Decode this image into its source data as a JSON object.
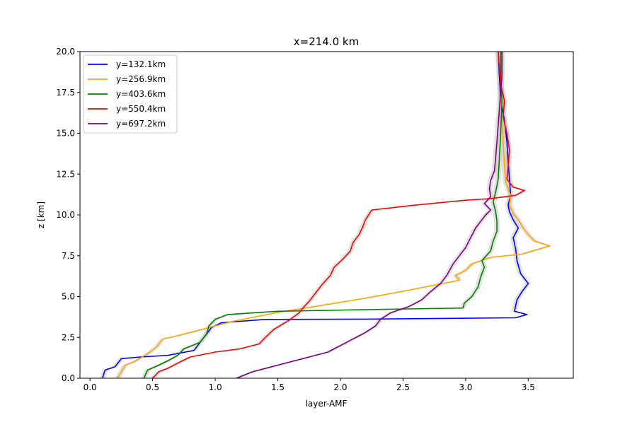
{
  "chart_data": {
    "type": "line",
    "title": "x=214.0 km",
    "xlabel": "layer-AMF",
    "ylabel": "z [km]",
    "xlim": [
      -0.08,
      3.86
    ],
    "ylim": [
      0,
      20
    ],
    "xticks": [
      "0.0",
      "0.5",
      "1.0",
      "1.5",
      "2.0",
      "2.5",
      "3.0",
      "3.5"
    ],
    "yticks": [
      "0.0",
      "2.5",
      "5.0",
      "7.5",
      "10.0",
      "12.5",
      "15.0",
      "17.5",
      "20.0"
    ],
    "grid": false,
    "legend_position": "upper-left",
    "uncertainty_band_color": "#c8c8c8",
    "series": [
      {
        "name": "y=132.1km",
        "color": "#0000ff",
        "points": [
          [
            0.1,
            0
          ],
          [
            0.12,
            0.5
          ],
          [
            0.2,
            0.7
          ],
          [
            0.25,
            1.2
          ],
          [
            0.4,
            1.3
          ],
          [
            0.62,
            1.4
          ],
          [
            0.83,
            1.7
          ],
          [
            0.88,
            2.2
          ],
          [
            0.92,
            2.6
          ],
          [
            0.97,
            3.1
          ],
          [
            1.05,
            3.4
          ],
          [
            1.4,
            3.6
          ],
          [
            2.2,
            3.62
          ],
          [
            3.4,
            3.7
          ],
          [
            3.49,
            3.9
          ],
          [
            3.39,
            4.1
          ],
          [
            3.41,
            4.8
          ],
          [
            3.45,
            5.3
          ],
          [
            3.5,
            5.8
          ],
          [
            3.44,
            6.4
          ],
          [
            3.41,
            7.2
          ],
          [
            3.4,
            7.9
          ],
          [
            3.38,
            8.6
          ],
          [
            3.42,
            9.2
          ],
          [
            3.38,
            9.7
          ],
          [
            3.35,
            10.2
          ],
          [
            3.34,
            10.6
          ],
          [
            3.36,
            11.2
          ],
          [
            3.35,
            12.2
          ],
          [
            3.34,
            13.2
          ],
          [
            3.33,
            14.5
          ],
          [
            3.31,
            15.8
          ],
          [
            3.28,
            17
          ],
          [
            3.27,
            18.5
          ],
          [
            3.26,
            20
          ]
        ]
      },
      {
        "name": "y=256.9km",
        "color": "#ffa500",
        "points": [
          [
            0.22,
            0
          ],
          [
            0.28,
            0.8
          ],
          [
            0.35,
            1.0
          ],
          [
            0.46,
            1.5
          ],
          [
            0.53,
            1.9
          ],
          [
            0.58,
            2.4
          ],
          [
            0.7,
            2.6
          ],
          [
            0.85,
            2.9
          ],
          [
            1.15,
            3.5
          ],
          [
            1.55,
            4.1
          ],
          [
            1.8,
            4.4
          ],
          [
            2.2,
            4.9
          ],
          [
            2.55,
            5.4
          ],
          [
            2.75,
            5.7
          ],
          [
            2.95,
            6.0
          ],
          [
            2.92,
            6.3
          ],
          [
            3.0,
            6.6
          ],
          [
            3.05,
            7.0
          ],
          [
            3.2,
            7.4
          ],
          [
            3.45,
            7.6
          ],
          [
            3.67,
            8.1
          ],
          [
            3.55,
            8.4
          ],
          [
            3.5,
            8.8
          ],
          [
            3.46,
            9.2
          ],
          [
            3.42,
            9.7
          ],
          [
            3.38,
            10.1
          ],
          [
            3.35,
            10.6
          ],
          [
            3.36,
            11.2
          ],
          [
            3.32,
            12.0
          ],
          [
            3.31,
            13.0
          ],
          [
            3.3,
            14.5
          ],
          [
            3.29,
            16.0
          ],
          [
            3.28,
            17.5
          ],
          [
            3.28,
            20
          ]
        ]
      },
      {
        "name": "y=403.6km",
        "color": "#008000",
        "points": [
          [
            0.43,
            0
          ],
          [
            0.46,
            0.5
          ],
          [
            0.55,
            0.8
          ],
          [
            0.63,
            1.1
          ],
          [
            0.7,
            1.4
          ],
          [
            0.75,
            1.8
          ],
          [
            0.88,
            2.2
          ],
          [
            0.93,
            2.7
          ],
          [
            0.95,
            3.2
          ],
          [
            1.0,
            3.6
          ],
          [
            1.1,
            3.9
          ],
          [
            1.5,
            4.1
          ],
          [
            2.2,
            4.2
          ],
          [
            2.98,
            4.3
          ],
          [
            2.99,
            4.6
          ],
          [
            3.05,
            5.0
          ],
          [
            3.1,
            5.6
          ],
          [
            3.12,
            6.2
          ],
          [
            3.15,
            6.8
          ],
          [
            3.13,
            7.2
          ],
          [
            3.2,
            7.8
          ],
          [
            3.22,
            8.4
          ],
          [
            3.25,
            9.0
          ],
          [
            3.25,
            9.6
          ],
          [
            3.24,
            10.2
          ],
          [
            3.22,
            10.8
          ],
          [
            3.24,
            11.4
          ],
          [
            3.26,
            12.2
          ],
          [
            3.27,
            13.5
          ],
          [
            3.28,
            15.0
          ],
          [
            3.29,
            17.0
          ],
          [
            3.28,
            18.5
          ],
          [
            3.28,
            20
          ]
        ]
      },
      {
        "name": "y=550.4km",
        "color": "#ff0000",
        "points": [
          [
            0.5,
            0
          ],
          [
            0.55,
            0.4
          ],
          [
            0.62,
            0.6
          ],
          [
            0.72,
            1.0
          ],
          [
            0.8,
            1.3
          ],
          [
            1.0,
            1.6
          ],
          [
            1.2,
            1.8
          ],
          [
            1.35,
            2.1
          ],
          [
            1.4,
            2.5
          ],
          [
            1.47,
            3.0
          ],
          [
            1.58,
            3.5
          ],
          [
            1.67,
            4.0
          ],
          [
            1.7,
            4.3
          ],
          [
            1.75,
            4.7
          ],
          [
            1.8,
            5.2
          ],
          [
            1.85,
            5.7
          ],
          [
            1.92,
            6.3
          ],
          [
            1.95,
            6.8
          ],
          [
            2.02,
            7.3
          ],
          [
            2.08,
            7.8
          ],
          [
            2.1,
            8.3
          ],
          [
            2.15,
            8.8
          ],
          [
            2.18,
            9.3
          ],
          [
            2.2,
            9.7
          ],
          [
            2.25,
            10.3
          ],
          [
            2.6,
            10.6
          ],
          [
            3.0,
            10.9
          ],
          [
            3.2,
            11.0
          ],
          [
            3.4,
            11.2
          ],
          [
            3.47,
            11.5
          ],
          [
            3.38,
            11.7
          ],
          [
            3.33,
            12.2
          ],
          [
            3.34,
            13.0
          ],
          [
            3.35,
            14.0
          ],
          [
            3.33,
            15.0
          ],
          [
            3.3,
            16.0
          ],
          [
            3.31,
            17.0
          ],
          [
            3.28,
            18.0
          ],
          [
            3.27,
            19.0
          ],
          [
            3.26,
            20
          ]
        ]
      },
      {
        "name": "y=697.2km",
        "color": "#800080",
        "points": [
          [
            1.17,
            0
          ],
          [
            1.3,
            0.4
          ],
          [
            1.45,
            0.7
          ],
          [
            1.6,
            1.0
          ],
          [
            1.75,
            1.3
          ],
          [
            1.9,
            1.6
          ],
          [
            2.0,
            2.0
          ],
          [
            2.1,
            2.4
          ],
          [
            2.2,
            2.8
          ],
          [
            2.28,
            3.2
          ],
          [
            2.32,
            3.6
          ],
          [
            2.4,
            4.0
          ],
          [
            2.55,
            4.4
          ],
          [
            2.65,
            4.8
          ],
          [
            2.72,
            5.3
          ],
          [
            2.8,
            5.8
          ],
          [
            2.85,
            6.3
          ],
          [
            2.9,
            7.0
          ],
          [
            2.95,
            7.5
          ],
          [
            3.0,
            8.0
          ],
          [
            3.04,
            8.6
          ],
          [
            3.08,
            9.2
          ],
          [
            3.12,
            9.6
          ],
          [
            3.16,
            10.0
          ],
          [
            3.2,
            10.3
          ],
          [
            3.15,
            10.7
          ],
          [
            3.2,
            11.1
          ],
          [
            3.19,
            11.6
          ],
          [
            3.2,
            12.1
          ],
          [
            3.23,
            12.7
          ],
          [
            3.24,
            13.5
          ],
          [
            3.25,
            14.5
          ],
          [
            3.26,
            15.5
          ],
          [
            3.27,
            16.5
          ],
          [
            3.28,
            17.5
          ],
          [
            3.29,
            18.5
          ],
          [
            3.29,
            20
          ]
        ]
      }
    ]
  }
}
